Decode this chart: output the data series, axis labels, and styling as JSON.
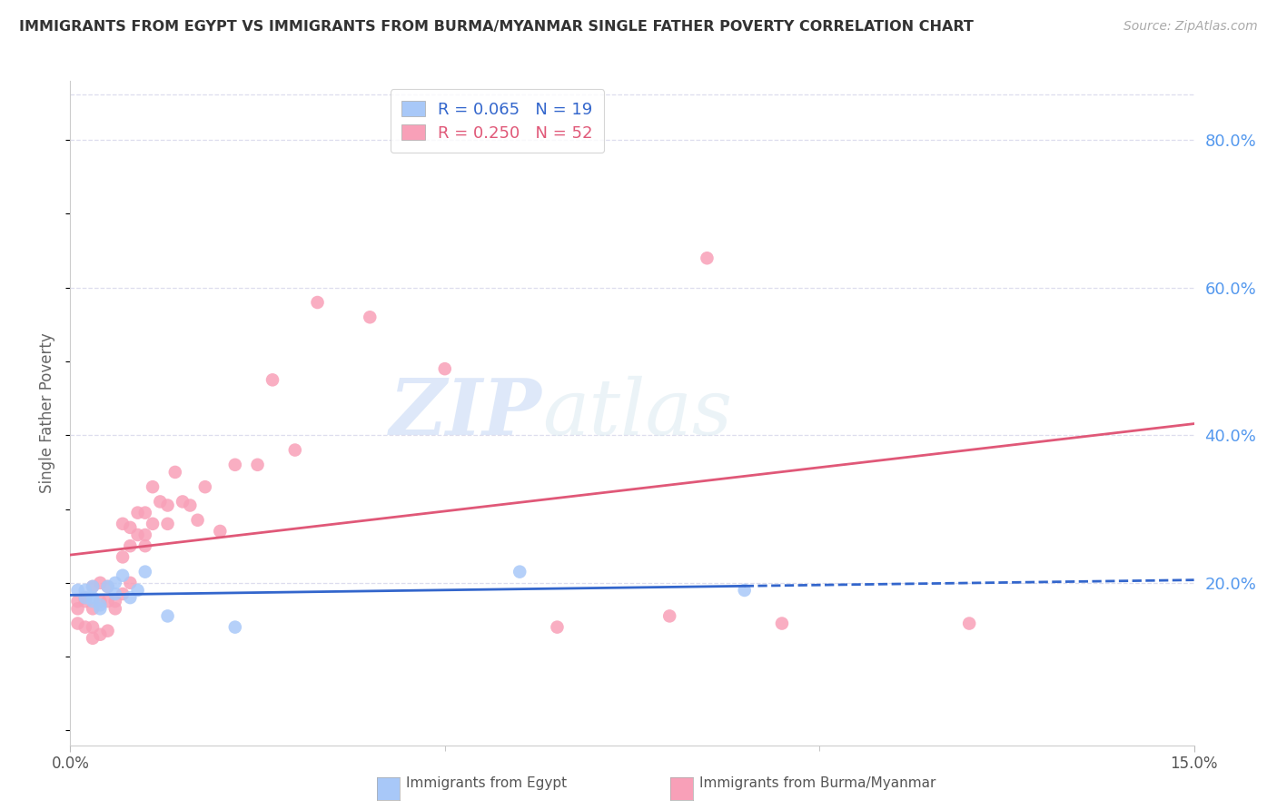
{
  "title": "IMMIGRANTS FROM EGYPT VS IMMIGRANTS FROM BURMA/MYANMAR SINGLE FATHER POVERTY CORRELATION CHART",
  "source": "Source: ZipAtlas.com",
  "ylabel": "Single Father Poverty",
  "xlim": [
    0.0,
    0.15
  ],
  "ylim": [
    -0.02,
    0.88
  ],
  "right_yticks": [
    0.2,
    0.4,
    0.6,
    0.8
  ],
  "right_yticklabels": [
    "20.0%",
    "40.0%",
    "60.0%",
    "80.0%"
  ],
  "xticks": [
    0.0,
    0.15
  ],
  "xticklabels": [
    "0.0%",
    "15.0%"
  ],
  "egypt_R": 0.065,
  "egypt_N": 19,
  "burma_R": 0.25,
  "burma_N": 52,
  "egypt_color": "#a8c8f8",
  "burma_color": "#f8a0b8",
  "egypt_line_color": "#3366cc",
  "burma_line_color": "#e05878",
  "background_color": "#ffffff",
  "grid_color": "#ddddee",
  "watermark_zip": "ZIP",
  "watermark_atlas": "atlas",
  "legend_label_egypt": "Immigrants from Egypt",
  "legend_label_burma": "Immigrants from Burma/Myanmar",
  "egypt_x": [
    0.001,
    0.002,
    0.002,
    0.003,
    0.003,
    0.003,
    0.004,
    0.004,
    0.005,
    0.006,
    0.006,
    0.007,
    0.008,
    0.009,
    0.01,
    0.013,
    0.022,
    0.06,
    0.09
  ],
  "egypt_y": [
    0.19,
    0.19,
    0.18,
    0.195,
    0.175,
    0.18,
    0.17,
    0.165,
    0.195,
    0.185,
    0.2,
    0.21,
    0.18,
    0.19,
    0.215,
    0.155,
    0.14,
    0.215,
    0.19
  ],
  "burma_x": [
    0.001,
    0.001,
    0.001,
    0.002,
    0.002,
    0.002,
    0.003,
    0.003,
    0.003,
    0.003,
    0.004,
    0.004,
    0.004,
    0.005,
    0.005,
    0.005,
    0.006,
    0.006,
    0.007,
    0.007,
    0.007,
    0.008,
    0.008,
    0.008,
    0.009,
    0.009,
    0.01,
    0.01,
    0.01,
    0.011,
    0.011,
    0.012,
    0.013,
    0.013,
    0.014,
    0.015,
    0.016,
    0.017,
    0.018,
    0.02,
    0.022,
    0.025,
    0.027,
    0.03,
    0.033,
    0.04,
    0.05,
    0.065,
    0.08,
    0.085,
    0.095,
    0.12
  ],
  "burma_y": [
    0.175,
    0.165,
    0.145,
    0.18,
    0.175,
    0.14,
    0.195,
    0.165,
    0.14,
    0.125,
    0.2,
    0.175,
    0.13,
    0.195,
    0.175,
    0.135,
    0.175,
    0.165,
    0.28,
    0.235,
    0.185,
    0.275,
    0.25,
    0.2,
    0.295,
    0.265,
    0.295,
    0.265,
    0.25,
    0.33,
    0.28,
    0.31,
    0.305,
    0.28,
    0.35,
    0.31,
    0.305,
    0.285,
    0.33,
    0.27,
    0.36,
    0.36,
    0.475,
    0.38,
    0.58,
    0.56,
    0.49,
    0.14,
    0.155,
    0.64,
    0.145,
    0.145
  ]
}
